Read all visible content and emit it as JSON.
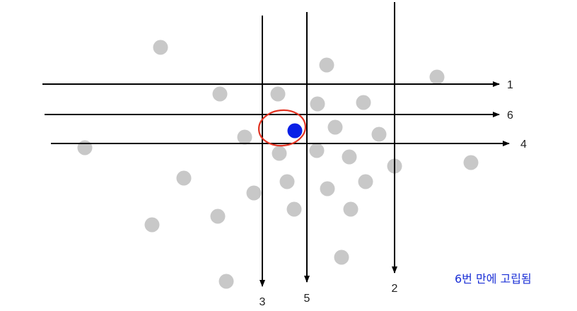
{
  "diagram": {
    "lines": [
      {
        "label": "1",
        "direction": "horizontal"
      },
      {
        "label": "6",
        "direction": "horizontal"
      },
      {
        "label": "4",
        "direction": "horizontal"
      },
      {
        "label": "3",
        "direction": "vertical"
      },
      {
        "label": "5",
        "direction": "vertical"
      },
      {
        "label": "2",
        "direction": "vertical"
      }
    ],
    "caption": "6번 만에 고립됨",
    "colors": {
      "line": "#000000",
      "point": "#c8c8c8",
      "isolated_point": "#0a1fe6",
      "highlight_circle": "#e33322",
      "caption": "#1a2fd6"
    }
  }
}
